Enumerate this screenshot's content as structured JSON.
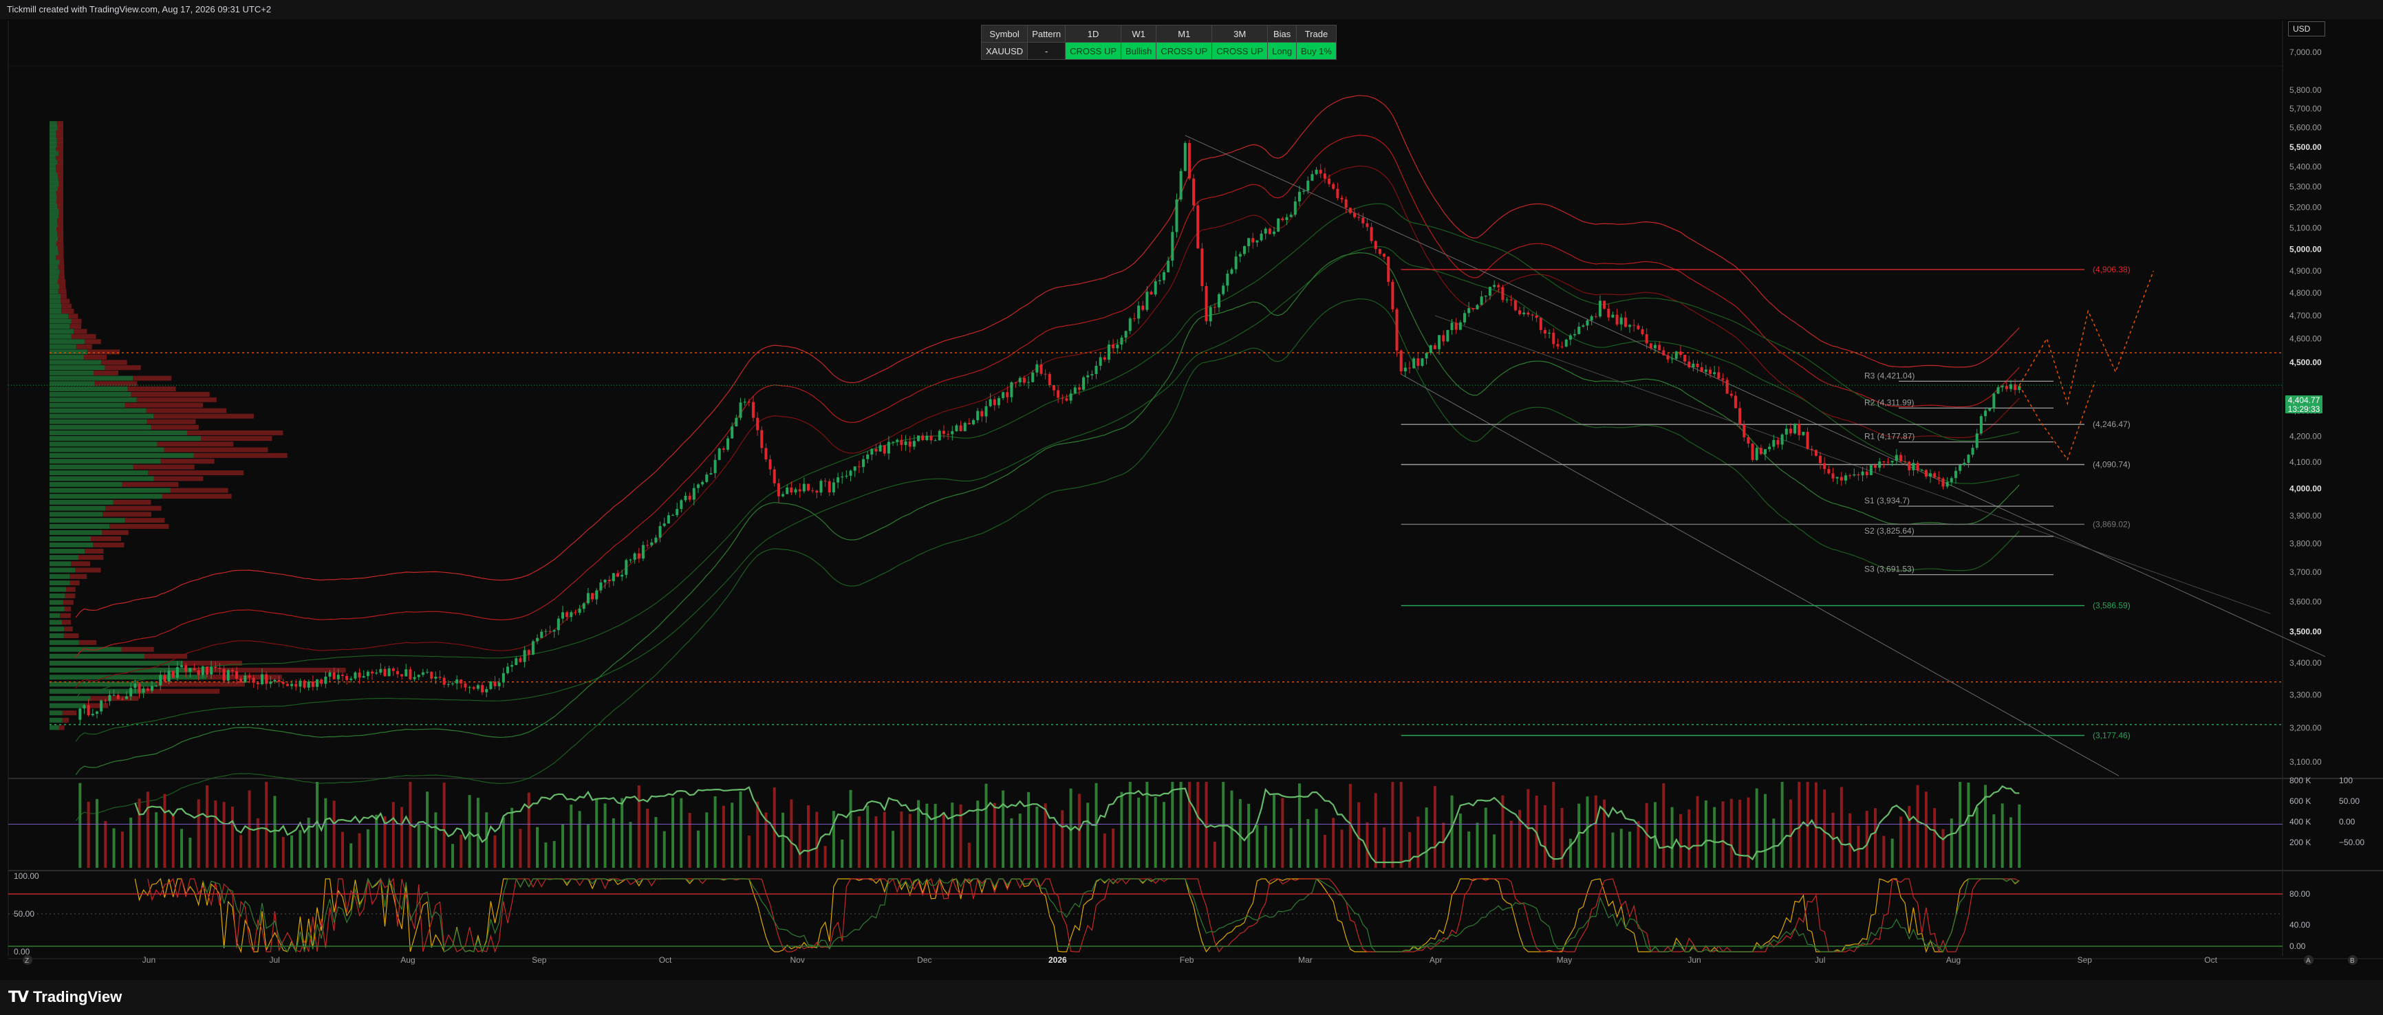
{
  "header": {
    "caption": "Tickmill created with TradingView.com, Aug 17, 2026 09:31 UTC+2"
  },
  "currency_selector": {
    "value": "USD"
  },
  "signal_table": {
    "headers": [
      "Symbol",
      "Pattern",
      "1D",
      "W1",
      "M1",
      "3M",
      "Bias",
      "Trade"
    ],
    "row": [
      "XAUUSD",
      "-",
      "CROSS UP",
      "Bullish",
      "CROSS UP",
      "CROSS UP",
      "Long",
      "Buy 1%"
    ]
  },
  "price_tag": {
    "price": "4,404.77",
    "countdown": "13:29:33"
  },
  "footer": {
    "brand": "TradingView",
    "left_button": "Z",
    "auto_button": "A",
    "log_button": "B"
  },
  "colors": {
    "up": "#26a65b",
    "down": "#e0262d",
    "profile_up": "#1f6b33",
    "profile_down": "#7a1b1b",
    "accent_green": "#00e676"
  },
  "chart_data": {
    "type": "candlestick",
    "symbol": "XAUUSD",
    "timeframe": "1D",
    "x_labels": [
      "Jun",
      "Jul",
      "Aug",
      "Sep",
      "Oct",
      "Nov",
      "Dec",
      "2026",
      "Feb",
      "Mar",
      "Apr",
      "May",
      "Jun",
      "Jul",
      "Aug",
      "Sep",
      "Oct"
    ],
    "y_ticks": [
      "7,000.00",
      "5,800.00",
      "5,700.00",
      "5,600.00",
      "5,500.00",
      "5,400.00",
      "5,300.00",
      "5,200.00",
      "5,100.00",
      "5,000.00",
      "4,900.00",
      "4,800.00",
      "4,700.00",
      "4,600.00",
      "4,500.00",
      "4,300.00",
      "4,200.00",
      "4,100.00",
      "4,000.00",
      "3,900.00",
      "3,800.00",
      "3,700.00",
      "3,600.00",
      "3,500.00",
      "3,400.00",
      "3,300.00",
      "3,200.00",
      "3,100.00"
    ],
    "price_path_keypoints": [
      [
        "2025-05-15",
        3240
      ],
      [
        "2025-06-10",
        3380
      ],
      [
        "2025-07-05",
        3330
      ],
      [
        "2025-07-25",
        3380
      ],
      [
        "2025-08-20",
        3320
      ],
      [
        "2025-09-05",
        3520
      ],
      [
        "2025-09-25",
        3760
      ],
      [
        "2025-10-12",
        4060
      ],
      [
        "2025-10-20",
        4360
      ],
      [
        "2025-10-28",
        3990
      ],
      [
        "2025-11-10",
        4010
      ],
      [
        "2025-11-20",
        4150
      ],
      [
        "2025-12-08",
        4210
      ],
      [
        "2025-12-28",
        4470
      ],
      [
        "2026-01-04",
        4340
      ],
      [
        "2026-01-18",
        4640
      ],
      [
        "2026-01-28",
        4920
      ],
      [
        "2026-02-01",
        5540
      ],
      [
        "2026-02-06",
        4690
      ],
      [
        "2026-02-15",
        5020
      ],
      [
        "2026-02-25",
        5150
      ],
      [
        "2026-03-03",
        5390
      ],
      [
        "2026-03-12",
        5200
      ],
      [
        "2026-03-20",
        4950
      ],
      [
        "2026-03-24",
        4450
      ],
      [
        "2026-03-30",
        4540
      ],
      [
        "2026-04-15",
        4820
      ],
      [
        "2026-05-01",
        4570
      ],
      [
        "2026-05-10",
        4740
      ],
      [
        "2026-05-25",
        4540
      ],
      [
        "2026-06-08",
        4440
      ],
      [
        "2026-06-15",
        4120
      ],
      [
        "2026-06-25",
        4240
      ],
      [
        "2026-07-05",
        4020
      ],
      [
        "2026-07-20",
        4110
      ],
      [
        "2026-07-30",
        4010
      ],
      [
        "2026-08-05",
        4140
      ],
      [
        "2026-08-12",
        4410
      ],
      [
        "2026-08-17",
        4404.77
      ]
    ],
    "current_price": 4404.77,
    "levels": [
      {
        "label": "R3 (4,421.04)",
        "value": 4421.04
      },
      {
        "label": "R2 (4,311.99)",
        "value": 4311.99
      },
      {
        "label": "R1 (4,177.87)",
        "value": 4177.87
      },
      {
        "label": "S1 (3,934.7)",
        "value": 3934.7
      },
      {
        "label": "S2 (3,825.64)",
        "value": 3825.64
      },
      {
        "label": "S3 (3,691.53)",
        "value": 3691.53
      }
    ],
    "fib_lines": [
      {
        "label": "(4,906.38)",
        "value": 4906.38,
        "color": "#e0262d"
      },
      {
        "label": "(4,246.47)",
        "value": 4246.47,
        "color": "#9e9e9e"
      },
      {
        "label": "(4,090.74)",
        "value": 4090.74,
        "color": "#9e9e9e"
      },
      {
        "label": "(3,869.02)",
        "value": 3869.02,
        "color": "#777777"
      },
      {
        "label": "(3,586.59)",
        "value": 3586.59,
        "color": "#26a65b"
      },
      {
        "label": "(3,177.46)",
        "value": 3177.46,
        "color": "#26a65b"
      }
    ],
    "dotted_levels": [
      4540,
      3340,
      3210
    ],
    "volume_axis": [
      "800 K",
      "600 K",
      "400 K",
      "200 K"
    ],
    "rsi_axis": [
      "100",
      "50.00",
      "0.00",
      "−50.00"
    ],
    "stoch_axis": [
      "100.00",
      "50.00",
      "0.00",
      "80.00",
      "40.00",
      "0.00"
    ]
  }
}
